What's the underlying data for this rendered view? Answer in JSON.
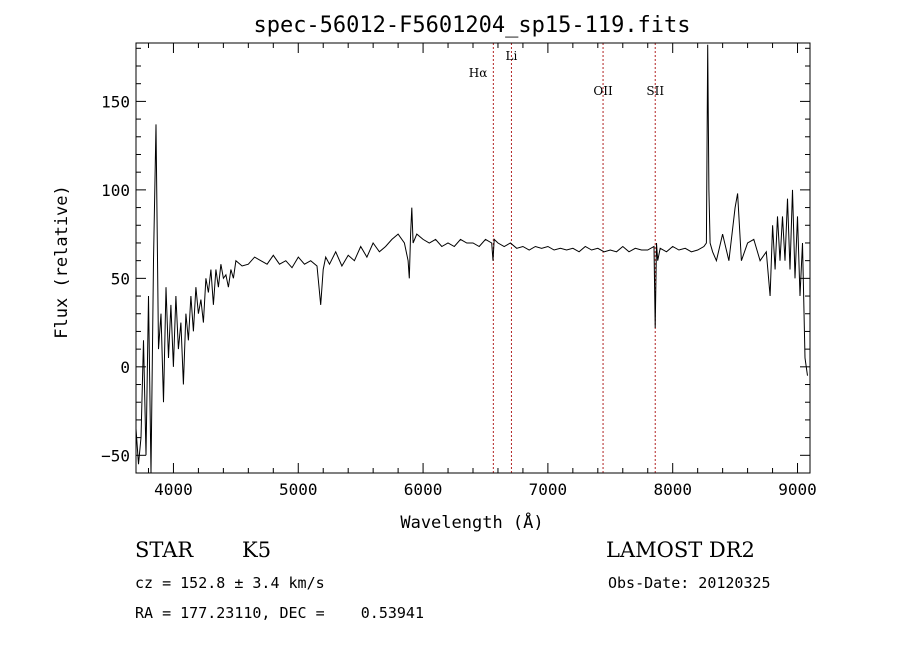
{
  "chart_data": {
    "type": "line",
    "title": "spec-56012-F5601204_sp15-119.fits",
    "xlabel": "Wavelength (Å)",
    "ylabel": "Flux (relative)",
    "xlim": [
      3700,
      9100
    ],
    "ylim": [
      -60,
      183
    ],
    "xticks": [
      4000,
      5000,
      6000,
      7000,
      8000,
      9000
    ],
    "yticks": [
      -50,
      0,
      50,
      100,
      150
    ],
    "grid": false,
    "line_color": "#000000",
    "marker_color": "#b22222",
    "series": [
      {
        "x": [
          3700,
          3720,
          3740,
          3760,
          3780,
          3800,
          3820,
          3840,
          3860,
          3880,
          3900,
          3920,
          3940,
          3960,
          3980,
          4000,
          4020,
          4040,
          4060,
          4080,
          4100,
          4120,
          4140,
          4160,
          4180,
          4200,
          4220,
          4240,
          4260,
          4280,
          4300,
          4320,
          4340,
          4360,
          4380,
          4400,
          4420,
          4440,
          4460,
          4480,
          4500,
          4550,
          4600,
          4650,
          4700,
          4750,
          4800,
          4850,
          4900,
          4950,
          5000,
          5050,
          5100,
          5150,
          5180,
          5200,
          5220,
          5250,
          5300,
          5350,
          5400,
          5450,
          5500,
          5550,
          5600,
          5650,
          5700,
          5750,
          5800,
          5850,
          5880,
          5890,
          5900,
          5910,
          5920,
          5950,
          6000,
          6050,
          6100,
          6150,
          6200,
          6250,
          6300,
          6350,
          6400,
          6450,
          6500,
          6550,
          6560,
          6570,
          6600,
          6650,
          6700,
          6750,
          6800,
          6850,
          6900,
          6950,
          7000,
          7050,
          7100,
          7150,
          7200,
          7250,
          7300,
          7350,
          7400,
          7450,
          7500,
          7550,
          7600,
          7650,
          7700,
          7750,
          7800,
          7850,
          7860,
          7870,
          7880,
          7900,
          7950,
          8000,
          8050,
          8100,
          8150,
          8200,
          8250,
          8270,
          8280,
          8290,
          8300,
          8320,
          8350,
          8400,
          8450,
          8500,
          8520,
          8550,
          8600,
          8650,
          8700,
          8750,
          8780,
          8800,
          8820,
          8840,
          8860,
          8880,
          8900,
          8920,
          8940,
          8960,
          8980,
          9000,
          9020,
          9040,
          9060,
          9080
        ],
        "y": [
          -35,
          -55,
          -40,
          15,
          -50,
          40,
          -60,
          60,
          137,
          10,
          30,
          -20,
          45,
          5,
          35,
          0,
          40,
          10,
          25,
          -10,
          30,
          15,
          40,
          20,
          45,
          30,
          38,
          25,
          50,
          42,
          55,
          35,
          55,
          45,
          58,
          50,
          52,
          45,
          55,
          50,
          60,
          57,
          58,
          62,
          60,
          58,
          63,
          58,
          60,
          56,
          62,
          58,
          60,
          57,
          35,
          55,
          62,
          58,
          65,
          57,
          63,
          60,
          68,
          62,
          70,
          65,
          68,
          72,
          75,
          70,
          60,
          50,
          75,
          90,
          70,
          75,
          72,
          70,
          72,
          68,
          70,
          68,
          72,
          70,
          70,
          68,
          72,
          70,
          60,
          72,
          70,
          68,
          70,
          67,
          68,
          66,
          68,
          67,
          68,
          66,
          67,
          66,
          67,
          65,
          68,
          66,
          67,
          65,
          66,
          65,
          68,
          65,
          67,
          66,
          66,
          68,
          22,
          70,
          60,
          67,
          65,
          68,
          66,
          67,
          65,
          66,
          68,
          70,
          182,
          100,
          70,
          65,
          60,
          75,
          60,
          90,
          98,
          60,
          70,
          72,
          60,
          65,
          40,
          80,
          55,
          85,
          60,
          85,
          60,
          95,
          55,
          100,
          50,
          85,
          40,
          70,
          5,
          -5
        ]
      }
    ],
    "lines": [
      {
        "label": "Hα",
        "x": 6563
      },
      {
        "label": "Li",
        "x": 6708
      },
      {
        "label": "OII",
        "x": 7442
      },
      {
        "label": "SII",
        "x": 7860
      }
    ]
  },
  "info": {
    "object_class": "STAR",
    "subclass": "K5",
    "survey": "LAMOST DR2",
    "velocity": "cz = 152.8 ± 3.4 km/s",
    "obs_date": "Obs-Date: 20120325",
    "coords": "RA = 177.23110, DEC =    0.53941"
  }
}
